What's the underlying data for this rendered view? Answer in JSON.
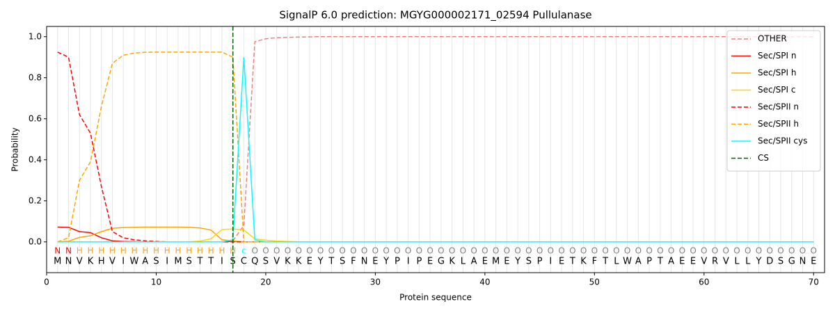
{
  "chart_data": {
    "type": "line",
    "title": "SignalP 6.0 prediction: MGYG000002171_02594 Pullulanase",
    "x_label": "Protein sequence",
    "y_label": "Probability",
    "xlim": [
      0,
      71
    ],
    "ylim": [
      -0.15,
      1.05
    ],
    "xticks": [
      0,
      10,
      20,
      30,
      40,
      50,
      60,
      70
    ],
    "yticks": [
      {
        "value": 0,
        "label": "0.0"
      },
      {
        "value": 0.2,
        "label": "0.2"
      },
      {
        "value": 0.4,
        "label": "0.4"
      },
      {
        "value": 0.6,
        "label": "0.6"
      },
      {
        "value": 0.8,
        "label": "0.8"
      },
      {
        "value": 1.0,
        "label": "1.0"
      }
    ],
    "grid": "x",
    "legend": "upper right",
    "x": [
      1,
      2,
      3,
      4,
      5,
      6,
      7,
      8,
      9,
      10,
      11,
      12,
      13,
      14,
      15,
      16,
      17,
      18,
      19,
      20,
      21,
      22,
      23,
      24,
      25,
      26,
      27,
      28,
      29,
      30,
      31,
      32,
      33,
      34,
      35,
      36,
      37,
      38,
      39,
      40,
      41,
      42,
      43,
      44,
      45,
      46,
      47,
      48,
      49,
      50,
      51,
      52,
      53,
      54,
      55,
      56,
      57,
      58,
      59,
      60,
      61,
      62,
      63,
      64,
      65,
      66,
      67,
      68,
      69,
      70
    ],
    "sequence": [
      "M",
      "N",
      "V",
      "K",
      "H",
      "V",
      "I",
      "W",
      "A",
      "S",
      "I",
      "M",
      "S",
      "T",
      "T",
      "I",
      "S",
      "C",
      "Q",
      "S",
      "V",
      "K",
      "K",
      "E",
      "Y",
      "T",
      "S",
      "F",
      "N",
      "E",
      "Y",
      "P",
      "I",
      "P",
      "E",
      "G",
      "K",
      "L",
      "A",
      "E",
      "M",
      "E",
      "Y",
      "S",
      "P",
      "I",
      "E",
      "T",
      "K",
      "F",
      "T",
      "L",
      "W",
      "A",
      "P",
      "T",
      "A",
      "E",
      "E",
      "V",
      "R",
      "V",
      "L",
      "L",
      "Y",
      "D",
      "S",
      "G",
      "N",
      "E"
    ],
    "residue_labels": [
      "N",
      "N",
      "H",
      "H",
      "H",
      "H",
      "H",
      "H",
      "H",
      "H",
      "H",
      "H",
      "H",
      "H",
      "H",
      "H",
      "H",
      "c",
      "O",
      "O",
      "O",
      "O",
      "O",
      "O",
      "O",
      "O",
      "O",
      "O",
      "O",
      "O",
      "O",
      "O",
      "O",
      "O",
      "O",
      "O",
      "O",
      "O",
      "O",
      "O",
      "O",
      "O",
      "O",
      "O",
      "O",
      "O",
      "O",
      "O",
      "O",
      "O",
      "O",
      "O",
      "O",
      "O",
      "O",
      "O",
      "O",
      "O",
      "O",
      "O",
      "O",
      "O",
      "O",
      "O",
      "O",
      "O",
      "O",
      "O",
      "O",
      "O"
    ],
    "residue_label_colors": {
      "N": "#ff0000",
      "H": "#ffa500",
      "c": "#00ffff",
      "O": "#808080"
    },
    "series": [
      {
        "name": "OTHER",
        "color": "#f08080",
        "style": "dashed",
        "values": [
          0,
          0,
          0,
          0,
          0,
          0,
          0,
          0,
          0,
          0,
          0,
          0,
          0,
          0,
          0,
          0,
          0.005,
          0.08,
          0.975,
          0.99,
          0.995,
          0.997,
          0.998,
          0.999,
          1,
          1,
          1,
          1,
          1,
          1,
          1,
          1,
          1,
          1,
          1,
          1,
          1,
          1,
          1,
          1,
          1,
          1,
          1,
          1,
          1,
          1,
          1,
          1,
          1,
          1,
          1,
          1,
          1,
          1,
          1,
          1,
          1,
          1,
          1,
          1,
          1,
          1,
          1,
          1,
          1,
          1,
          1,
          1,
          1,
          1
        ]
      },
      {
        "name": "Sec/SPI n",
        "color": "#ff0000",
        "style": "solid",
        "values": [
          0.072,
          0.071,
          0.05,
          0.045,
          0.02,
          0.005,
          0.002,
          0.001,
          0,
          0,
          0,
          0,
          0,
          0,
          0,
          0,
          0.003,
          0,
          0,
          0,
          0,
          0,
          0,
          0,
          0,
          0,
          0,
          0,
          0,
          0,
          0,
          0,
          0,
          0,
          0,
          0,
          0,
          0,
          0,
          0,
          0,
          0,
          0,
          0,
          0,
          0,
          0,
          0,
          0,
          0,
          0,
          0,
          0,
          0,
          0,
          0,
          0,
          0,
          0,
          0,
          0,
          0,
          0,
          0,
          0,
          0,
          0,
          0,
          0,
          0
        ]
      },
      {
        "name": "Sec/SPI h",
        "color": "#ffa500",
        "style": "solid",
        "values": [
          0,
          0.003,
          0.022,
          0.03,
          0.05,
          0.066,
          0.07,
          0.071,
          0.072,
          0.072,
          0.072,
          0.072,
          0.071,
          0.068,
          0.058,
          0.01,
          0.005,
          0,
          0,
          0,
          0,
          0,
          0,
          0,
          0,
          0,
          0,
          0,
          0,
          0,
          0,
          0,
          0,
          0,
          0,
          0,
          0,
          0,
          0,
          0,
          0,
          0,
          0,
          0,
          0,
          0,
          0,
          0,
          0,
          0,
          0,
          0,
          0,
          0,
          0,
          0,
          0,
          0,
          0,
          0,
          0,
          0,
          0,
          0,
          0,
          0,
          0,
          0,
          0,
          0
        ]
      },
      {
        "name": "Sec/SPI c",
        "color": "#ffd700",
        "style": "solid",
        "values": [
          0,
          0,
          0,
          0,
          0,
          0,
          0,
          0,
          0,
          0,
          0,
          0,
          0,
          0.004,
          0.015,
          0.06,
          0.063,
          0.058,
          0.015,
          0.008,
          0.004,
          0.002,
          0,
          0,
          0,
          0,
          0,
          0,
          0,
          0,
          0,
          0,
          0,
          0,
          0,
          0,
          0,
          0,
          0,
          0,
          0,
          0,
          0,
          0,
          0,
          0,
          0,
          0,
          0,
          0,
          0,
          0,
          0,
          0,
          0,
          0,
          0,
          0,
          0,
          0,
          0,
          0,
          0,
          0,
          0,
          0,
          0,
          0,
          0,
          0
        ]
      },
      {
        "name": "Sec/SPII n",
        "color": "#ff0000",
        "style": "dashed",
        "values": [
          0.925,
          0.9,
          0.62,
          0.53,
          0.27,
          0.05,
          0.02,
          0.01,
          0.005,
          0.002,
          0,
          0,
          0,
          0,
          0,
          0,
          0,
          0,
          0,
          0,
          0,
          0,
          0,
          0,
          0,
          0,
          0,
          0,
          0,
          0,
          0,
          0,
          0,
          0,
          0,
          0,
          0,
          0,
          0,
          0,
          0,
          0,
          0,
          0,
          0,
          0,
          0,
          0,
          0,
          0,
          0,
          0,
          0,
          0,
          0,
          0,
          0,
          0,
          0,
          0,
          0,
          0,
          0,
          0,
          0,
          0,
          0,
          0,
          0,
          0
        ]
      },
      {
        "name": "Sec/SPII h",
        "color": "#ffa500",
        "style": "dashed",
        "values": [
          0,
          0.02,
          0.3,
          0.39,
          0.66,
          0.87,
          0.91,
          0.92,
          0.924,
          0.925,
          0.925,
          0.925,
          0.925,
          0.925,
          0.925,
          0.925,
          0.9,
          0,
          0,
          0,
          0,
          0,
          0,
          0,
          0,
          0,
          0,
          0,
          0,
          0,
          0,
          0,
          0,
          0,
          0,
          0,
          0,
          0,
          0,
          0,
          0,
          0,
          0,
          0,
          0,
          0,
          0,
          0,
          0,
          0,
          0,
          0,
          0,
          0,
          0,
          0,
          0,
          0,
          0,
          0,
          0,
          0,
          0,
          0,
          0,
          0,
          0,
          0,
          0,
          0
        ]
      },
      {
        "name": "Sec/SPII cys",
        "color": "#00ffff",
        "style": "solid",
        "values": [
          0,
          0,
          0,
          0,
          0,
          0,
          0,
          0,
          0,
          0,
          0,
          0,
          0,
          0,
          0,
          0,
          0.01,
          0.9,
          0.01,
          0,
          0,
          0,
          0,
          0,
          0,
          0,
          0,
          0,
          0,
          0,
          0,
          0,
          0,
          0,
          0,
          0,
          0,
          0,
          0,
          0,
          0,
          0,
          0,
          0,
          0,
          0,
          0,
          0,
          0,
          0,
          0,
          0,
          0,
          0,
          0,
          0,
          0,
          0,
          0,
          0,
          0,
          0,
          0,
          0,
          0,
          0,
          0,
          0,
          0,
          0
        ]
      }
    ],
    "cs": {
      "name": "CS",
      "color": "#006400",
      "style": "dashed",
      "x": 17
    }
  }
}
